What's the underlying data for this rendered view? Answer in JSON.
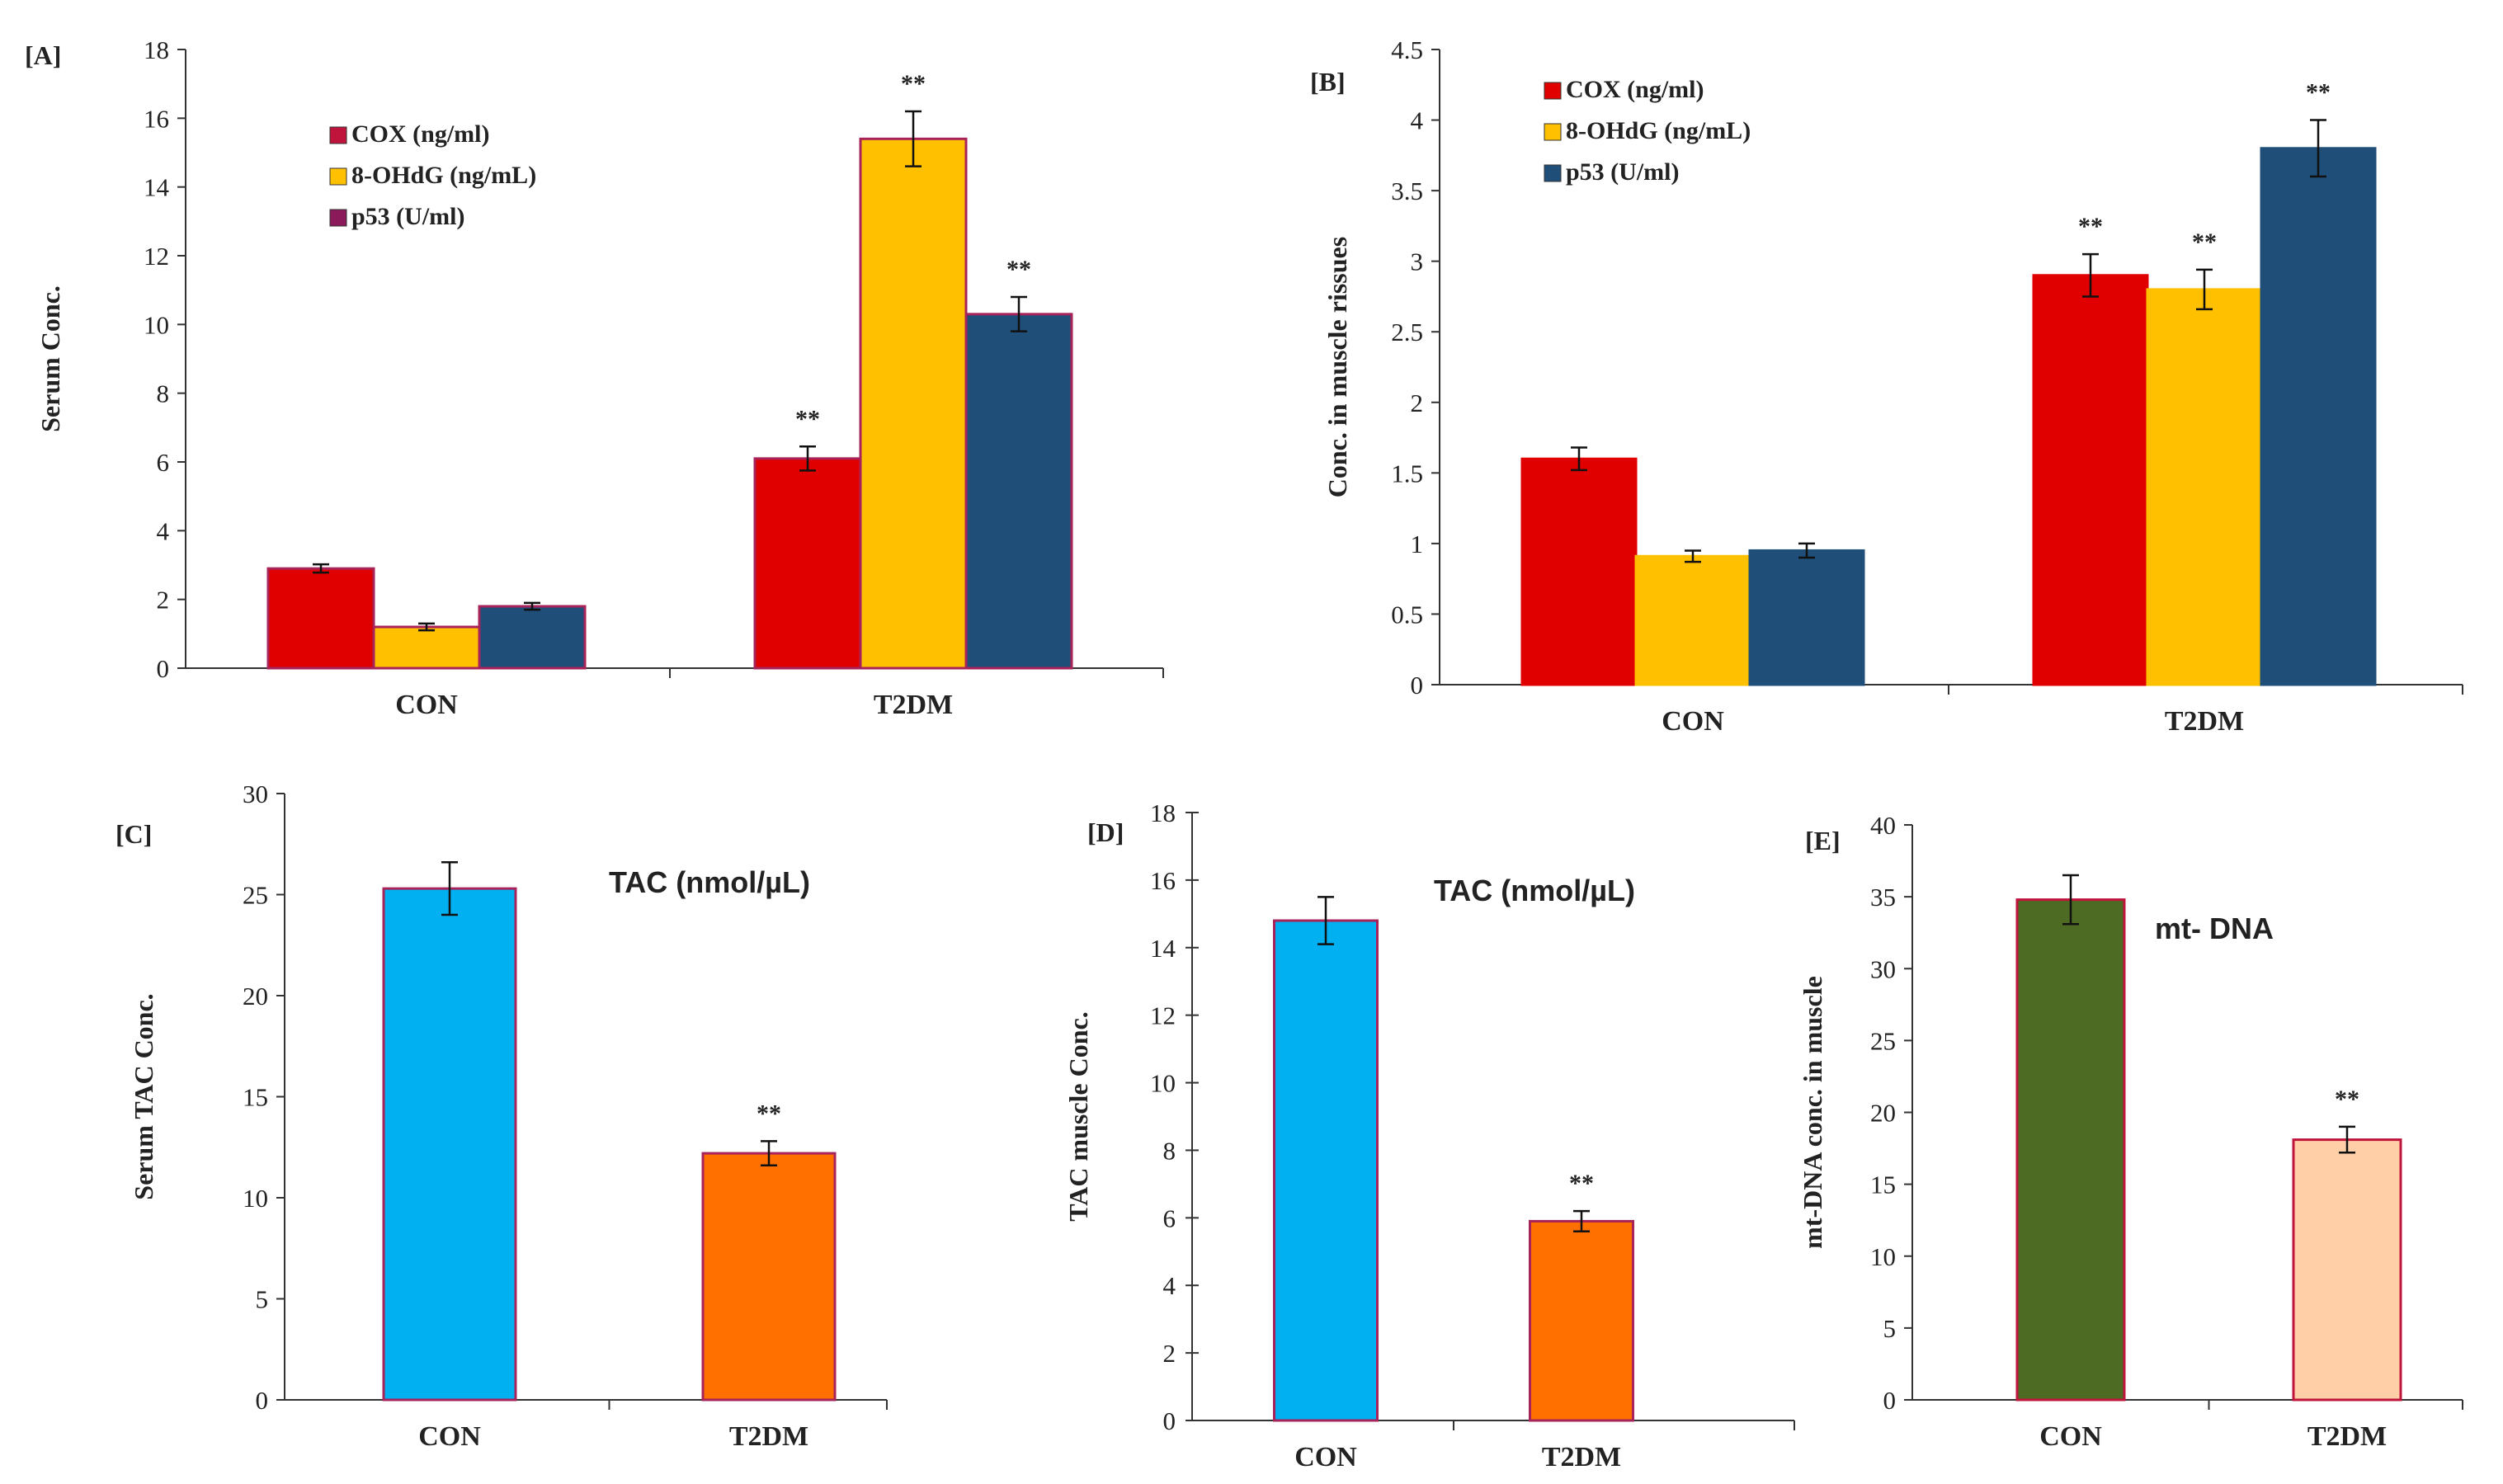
{
  "chart_data": [
    {
      "id": "A",
      "panel_label": "[A]",
      "type": "bar",
      "categories": [
        "CON",
        "T2DM"
      ],
      "ylabel": "Serum Conc.",
      "ylim": [
        0,
        18
      ],
      "yticks": [
        "0",
        "2",
        "4",
        "6",
        "8",
        "10",
        "12",
        "14",
        "16",
        "18"
      ],
      "series": [
        {
          "name": "COX (ng/ml)",
          "color": "#e00000",
          "border": "#a8235a",
          "legend_swatch": "#c0143c",
          "values": [
            2.9,
            6.1
          ],
          "errors": [
            0.12,
            0.35
          ],
          "sig": [
            "",
            "**"
          ]
        },
        {
          "name": "8-OHdG (ng/mL)",
          "color": "#ffc000",
          "border": "#a8235a",
          "legend_swatch": "#ffc000",
          "values": [
            1.2,
            15.4
          ],
          "errors": [
            0.1,
            0.8
          ],
          "sig": [
            "",
            "**"
          ]
        },
        {
          "name": "p53 (U/ml)",
          "color": "#1f4e79",
          "border": "#a8235a",
          "legend_swatch": "#8b1a5a",
          "values": [
            1.8,
            10.3
          ],
          "errors": [
            0.1,
            0.5
          ],
          "sig": [
            "",
            "**"
          ]
        }
      ]
    },
    {
      "id": "B",
      "panel_label": "[B]",
      "type": "bar",
      "categories": [
        "CON",
        "T2DM"
      ],
      "ylabel": "Conc. in muscle rissues",
      "ylim": [
        0,
        4.5
      ],
      "yticks": [
        "0",
        "0.5",
        "1",
        "1.5",
        "2",
        "2.5",
        "3",
        "3.5",
        "4",
        "4.5"
      ],
      "series": [
        {
          "name": "COX (ng/ml)",
          "color": "#e00000",
          "border": "#e00000",
          "legend_swatch": "#e00000",
          "values": [
            1.6,
            2.9
          ],
          "errors": [
            0.08,
            0.15
          ],
          "sig": [
            "",
            "**"
          ]
        },
        {
          "name": "8-OHdG (ng/mL)",
          "color": "#ffc000",
          "border": "#ffc000",
          "legend_swatch": "#ffc000",
          "values": [
            0.91,
            2.8
          ],
          "errors": [
            0.04,
            0.14
          ],
          "sig": [
            "",
            "**"
          ]
        },
        {
          "name": "p53 (U/ml)",
          "color": "#1f4e79",
          "border": "#1f4e79",
          "legend_swatch": "#1f4e79",
          "values": [
            0.95,
            3.8
          ],
          "errors": [
            0.05,
            0.2
          ],
          "sig": [
            "",
            "**"
          ]
        }
      ]
    },
    {
      "id": "C",
      "panel_label": "[C]",
      "type": "bar",
      "title": "TAC (nmol/µL)",
      "categories": [
        "CON",
        "T2DM"
      ],
      "ylabel": "Serum TAC  Conc.",
      "ylim": [
        0,
        30
      ],
      "yticks": [
        "0",
        "5",
        "10",
        "15",
        "20",
        "25",
        "30"
      ],
      "series": [
        {
          "name": "TAC (nmol/µL)",
          "colors": [
            "#00b0f0",
            "#ff7000"
          ],
          "border": "#a8235a",
          "values": [
            25.3,
            12.2
          ],
          "errors": [
            1.3,
            0.6
          ],
          "sig": [
            "",
            "**"
          ]
        }
      ]
    },
    {
      "id": "D",
      "panel_label": "[D]",
      "type": "bar",
      "title": "TAC (nmol/µL)",
      "categories": [
        "CON",
        "T2DM"
      ],
      "ylabel": "TAC muscle Conc.",
      "ylim": [
        0,
        18
      ],
      "yticks": [
        "0",
        "2",
        "4",
        "6",
        "8",
        "10",
        "12",
        "14",
        "16",
        "18"
      ],
      "series": [
        {
          "name": "TAC (nmol/µL)",
          "colors": [
            "#00b0f0",
            "#ff7000"
          ],
          "border": "#a8235a",
          "values": [
            14.8,
            5.9
          ],
          "errors": [
            0.7,
            0.3
          ],
          "sig": [
            "",
            "**"
          ]
        }
      ]
    },
    {
      "id": "E",
      "panel_label": "[E]",
      "type": "bar",
      "title": "mt- DNA",
      "categories": [
        "CON",
        "T2DM"
      ],
      "ylabel": "mt-DNA conc. in muscle",
      "ylim": [
        0,
        40
      ],
      "yticks": [
        "0",
        "5",
        "10",
        "15",
        "20",
        "25",
        "30",
        "35",
        "40"
      ],
      "series": [
        {
          "name": "mt- DNA",
          "colors": [
            "#4e6b24",
            "#ffd0a8"
          ],
          "border": "#c0143c",
          "values": [
            34.8,
            18.1
          ],
          "errors": [
            1.7,
            0.9
          ],
          "sig": [
            "",
            "**"
          ]
        }
      ]
    }
  ]
}
